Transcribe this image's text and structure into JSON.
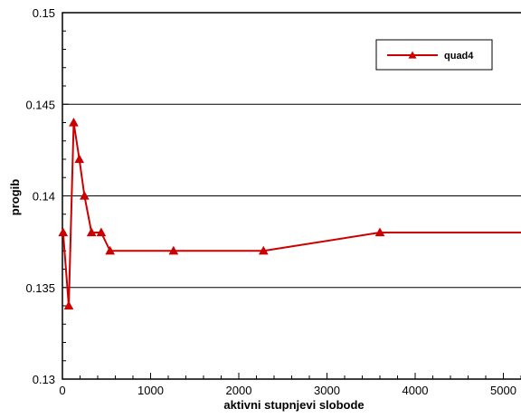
{
  "chart_data": {
    "type": "line",
    "xlabel": "aktivni stupnjevi slobode",
    "ylabel": "progib",
    "xlim": [
      0,
      5200
    ],
    "ylim": [
      0.13,
      0.15
    ],
    "x_ticks": [
      0,
      1000,
      2000,
      3000,
      4000,
      5000
    ],
    "y_ticks": [
      0.13,
      0.135,
      0.14,
      0.145,
      0.15
    ],
    "x_tick_labels": [
      "0",
      "1000",
      "2000",
      "3000",
      "4000",
      "5000"
    ],
    "y_tick_labels": [
      "0.13",
      "0.135",
      "0.14",
      "0.145",
      "0.15"
    ],
    "grid": "horizontal",
    "legend_position": "top-right",
    "series": [
      {
        "name": "quad4",
        "color": "#cc0000",
        "marker": "triangle",
        "x": [
          8,
          72,
          128,
          192,
          250,
          330,
          440,
          540,
          1260,
          2280,
          3600,
          5200
        ],
        "y": [
          0.138,
          0.134,
          0.144,
          0.142,
          0.14,
          0.138,
          0.138,
          0.137,
          0.137,
          0.137,
          0.138,
          0.138
        ]
      }
    ]
  }
}
